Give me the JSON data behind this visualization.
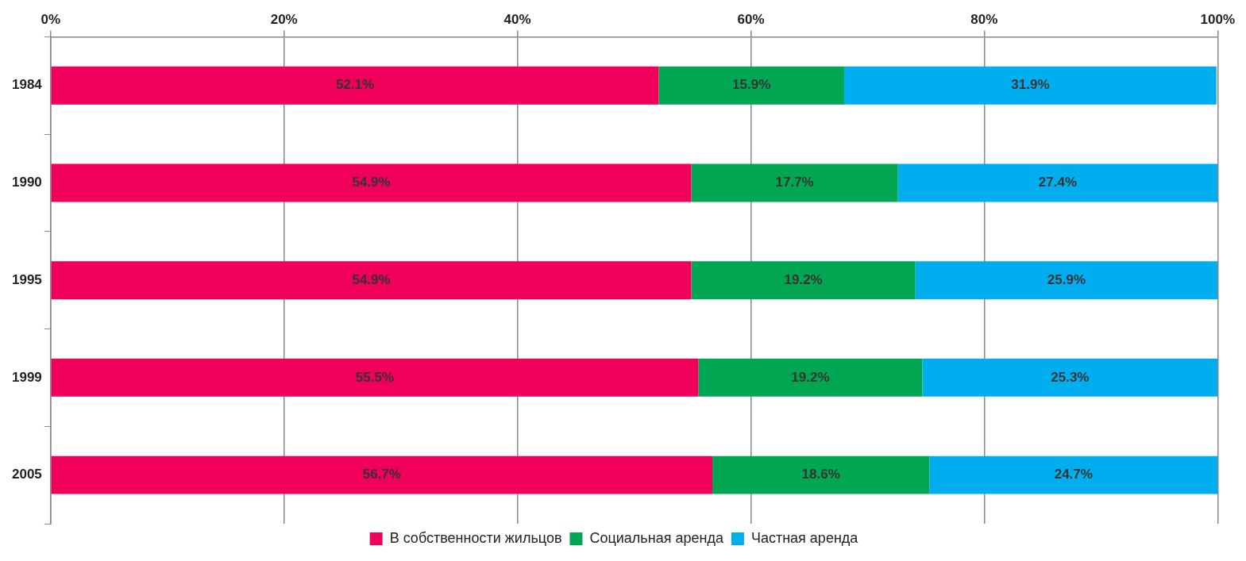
{
  "chart_data": {
    "type": "bar",
    "orientation": "horizontal",
    "stacked": true,
    "categories": [
      "1984",
      "1990",
      "1995",
      "1999",
      "2005"
    ],
    "series": [
      {
        "name": "В собственности жильцов",
        "color": "#f0005a",
        "values": [
          52.1,
          54.9,
          54.9,
          55.5,
          56.7
        ],
        "value_labels": [
          "52.1%",
          "54.9%",
          "54.9%",
          "55.5%",
          "56.7%"
        ]
      },
      {
        "name": "Социальная аренда",
        "color": "#00a651",
        "values": [
          15.9,
          17.7,
          19.2,
          19.2,
          18.6
        ],
        "value_labels": [
          "15.9%",
          "17.7%",
          "19.2%",
          "19.2%",
          "18.6%"
        ]
      },
      {
        "name": "Частная аренда",
        "color": "#00aeef",
        "values": [
          31.9,
          27.4,
          25.9,
          25.3,
          24.7
        ],
        "value_labels": [
          "31.9%",
          "27.4%",
          "25.9%",
          "25.3%",
          "24.7%"
        ]
      }
    ],
    "xlim": [
      0,
      100
    ],
    "xticks": [
      {
        "value": 0,
        "label": "0%"
      },
      {
        "value": 20,
        "label": "20%"
      },
      {
        "value": 40,
        "label": "40%"
      },
      {
        "value": 60,
        "label": "60%"
      },
      {
        "value": 80,
        "label": "80%"
      },
      {
        "value": 100,
        "label": "100%"
      }
    ],
    "grid": "x",
    "legend": "bottom"
  }
}
